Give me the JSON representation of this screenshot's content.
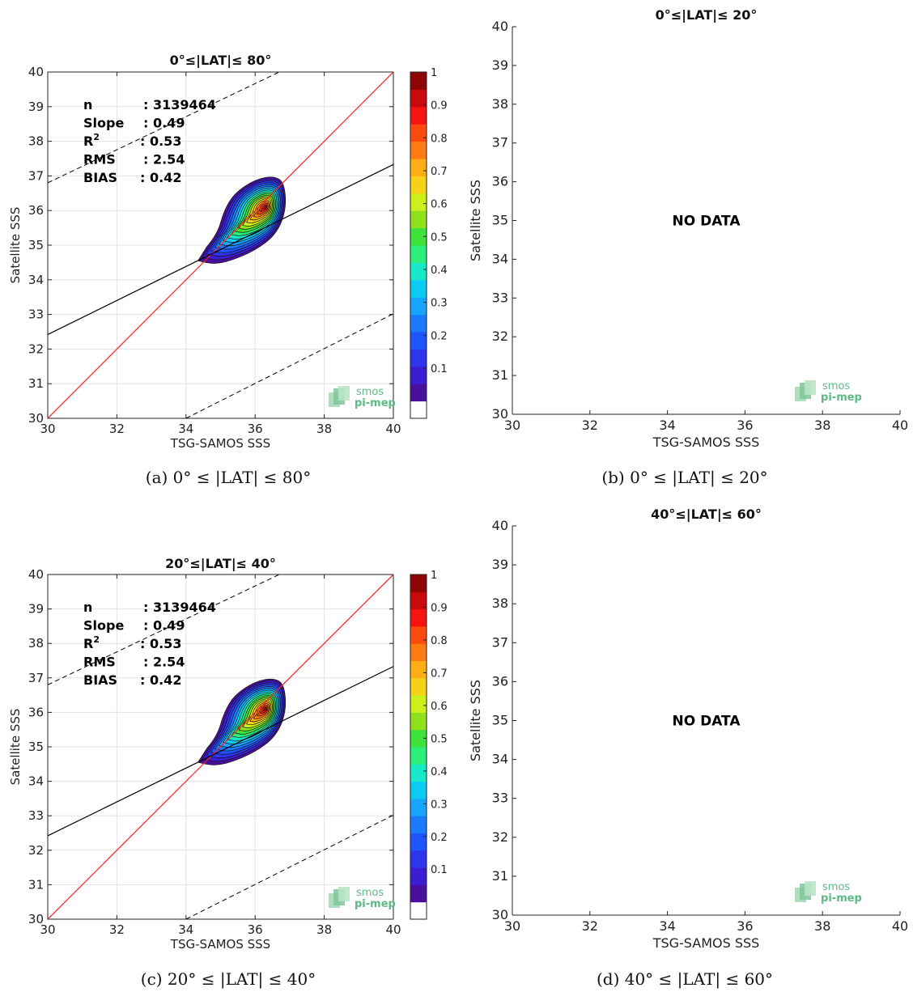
{
  "chart_data": [
    {
      "id": "a",
      "type": "heatmap",
      "title": "0°≤|LAT|≤ 80°",
      "caption": "(a) 0° ≤ |LAT| ≤ 80°",
      "xlabel": "TSG-SAMOS SSS",
      "ylabel": "Satellite SSS",
      "xlim": [
        30,
        40
      ],
      "ylim": [
        30,
        40
      ],
      "xticks": [
        30,
        32,
        34,
        36,
        38,
        40
      ],
      "yticks": [
        30,
        31,
        32,
        33,
        34,
        35,
        36,
        37,
        38,
        39,
        40
      ],
      "grid": true,
      "stats": [
        {
          "label": "n",
          "value": ": 3139464"
        },
        {
          "label": "Slope",
          "value": ": 0.49"
        },
        {
          "label": "R",
          "sup": "2",
          "value": ": 0.53"
        },
        {
          "label": "RMS",
          "value": ": 2.54"
        },
        {
          "label": "BIAS",
          "value": ": 0.42"
        }
      ],
      "lines": {
        "identity": {
          "x": [
            30,
            40
          ],
          "y": [
            30,
            40
          ],
          "color": "#ff2020"
        },
        "fit": {
          "x": [
            30,
            40
          ],
          "y": [
            32.42,
            37.33
          ],
          "color": "#000000"
        },
        "upper_dashed": {
          "x": [
            30,
            36.7
          ],
          "y": [
            36.8,
            40
          ]
        },
        "lower_dashed": {
          "x": [
            34,
            40
          ],
          "y": [
            30,
            33.02
          ]
        }
      },
      "density": {
        "center": [
          36.3,
          36.1
        ],
        "extent_x": [
          34.3,
          36.9
        ],
        "extent_y": [
          34.45,
          37.0
        ]
      },
      "colorbar": {
        "ticks": [
          "0.1",
          "0.2",
          "0.3",
          "0.4",
          "0.5",
          "0.6",
          "0.7",
          "0.8",
          "0.9",
          "1"
        ],
        "colors": [
          "#ffffff",
          "#4b0fa0",
          "#3c1ed2",
          "#2e35ef",
          "#1f55ff",
          "#1a7bff",
          "#17a5ff",
          "#0ccbf2",
          "#16e8c8",
          "#2cef7a",
          "#3ee23a",
          "#8fe11c",
          "#ccf01a",
          "#f4d21a",
          "#ffad14",
          "#ff7a10",
          "#ff4a10",
          "#f51410",
          "#c80a0a",
          "#8f0505"
        ]
      },
      "logo": {
        "line1": "smos",
        "line2": "pi-mep"
      }
    },
    {
      "id": "b",
      "type": "scatter",
      "title": "0°≤|LAT|≤ 20°",
      "caption": "(b) 0° ≤ |LAT| ≤ 20°",
      "xlabel": "TSG-SAMOS SSS",
      "ylabel": "Satellite SSS",
      "xlim": [
        30,
        40
      ],
      "ylim": [
        30,
        40
      ],
      "xticks": [
        30,
        32,
        34,
        36,
        38,
        40
      ],
      "yticks": [
        30,
        31,
        32,
        33,
        34,
        35,
        36,
        37,
        38,
        39,
        40
      ],
      "no_data_text": "NO DATA",
      "logo": {
        "line1": "smos",
        "line2": "pi-mep"
      }
    },
    {
      "id": "c",
      "type": "heatmap",
      "title": "20°≤|LAT|≤ 40°",
      "caption": "(c) 20° ≤ |LAT| ≤ 40°",
      "xlabel": "TSG-SAMOS SSS",
      "ylabel": "Satellite SSS",
      "xlim": [
        30,
        40
      ],
      "ylim": [
        30,
        40
      ],
      "xticks": [
        30,
        32,
        34,
        36,
        38,
        40
      ],
      "yticks": [
        30,
        31,
        32,
        33,
        34,
        35,
        36,
        37,
        38,
        39,
        40
      ],
      "grid": true,
      "stats": [
        {
          "label": "n",
          "value": ": 3139464"
        },
        {
          "label": "Slope",
          "value": ": 0.49"
        },
        {
          "label": "R",
          "sup": "2",
          "value": ": 0.53"
        },
        {
          "label": "RMS",
          "value": ": 2.54"
        },
        {
          "label": "BIAS",
          "value": ": 0.42"
        }
      ],
      "lines": {
        "identity": {
          "x": [
            30,
            40
          ],
          "y": [
            30,
            40
          ],
          "color": "#ff2020"
        },
        "fit": {
          "x": [
            30,
            40
          ],
          "y": [
            32.42,
            37.33
          ],
          "color": "#000000"
        },
        "upper_dashed": {
          "x": [
            30,
            36.7
          ],
          "y": [
            36.8,
            40
          ]
        },
        "lower_dashed": {
          "x": [
            34,
            40
          ],
          "y": [
            30,
            33.02
          ]
        }
      },
      "density": {
        "center": [
          36.3,
          36.1
        ],
        "extent_x": [
          34.3,
          36.9
        ],
        "extent_y": [
          34.45,
          37.0
        ]
      },
      "colorbar": {
        "ticks": [
          "0.1",
          "0.2",
          "0.3",
          "0.4",
          "0.5",
          "0.6",
          "0.7",
          "0.8",
          "0.9",
          "1"
        ],
        "colors": [
          "#ffffff",
          "#4b0fa0",
          "#3c1ed2",
          "#2e35ef",
          "#1f55ff",
          "#1a7bff",
          "#17a5ff",
          "#0ccbf2",
          "#16e8c8",
          "#2cef7a",
          "#3ee23a",
          "#8fe11c",
          "#ccf01a",
          "#f4d21a",
          "#ffad14",
          "#ff7a10",
          "#ff4a10",
          "#f51410",
          "#c80a0a",
          "#8f0505"
        ]
      },
      "logo": {
        "line1": "smos",
        "line2": "pi-mep"
      }
    },
    {
      "id": "d",
      "type": "scatter",
      "title": "40°≤|LAT|≤ 60°",
      "caption": "(d) 40° ≤ |LAT| ≤ 60°",
      "xlabel": "TSG-SAMOS SSS",
      "ylabel": "Satellite SSS",
      "xlim": [
        30,
        40
      ],
      "ylim": [
        30,
        40
      ],
      "xticks": [
        30,
        32,
        34,
        36,
        38,
        40
      ],
      "yticks": [
        30,
        31,
        32,
        33,
        34,
        35,
        36,
        37,
        38,
        39,
        40
      ],
      "no_data_text": "NO DATA",
      "logo": {
        "line1": "smos",
        "line2": "pi-mep"
      }
    }
  ]
}
